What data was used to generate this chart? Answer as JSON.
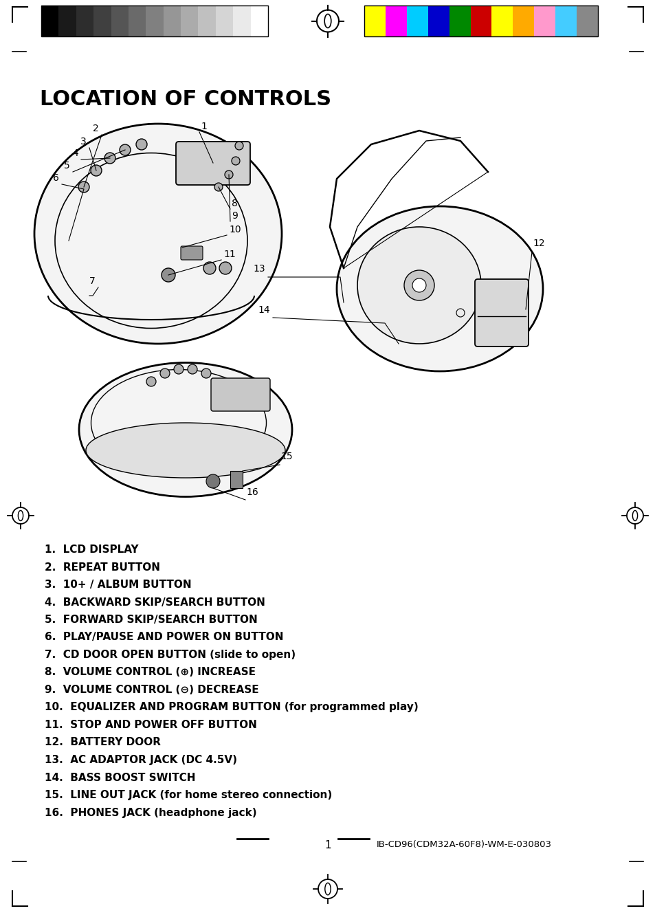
{
  "title": "LOCATION OF CONTROLS",
  "background_color": "#ffffff",
  "text_color": "#000000",
  "items": [
    "1.  LCD DISPLAY",
    "2.  REPEAT BUTTON",
    "3.  10+ / ALBUM BUTTON",
    "4.  BACKWARD SKIP/SEARCH BUTTON",
    "5.  FORWARD SKIP/SEARCH BUTTON",
    "6.  PLAY/PAUSE AND POWER ON BUTTON",
    "7.  CD DOOR OPEN BUTTON (slide to open)",
    "8.  VOLUME CONTROL (⊕) INCREASE",
    "9.  VOLUME CONTROL (⊖) DECREASE",
    "10.  EQUALIZER AND PROGRAM BUTTON (for programmed play)",
    "11.  STOP AND POWER OFF BUTTON",
    "12.  BATTERY DOOR",
    "13.  AC ADAPTOR JACK (DC 4.5V)",
    "14.  BASS BOOST SWITCH",
    "15.  LINE OUT JACK (for home stereo connection)",
    "16.  PHONES JACK (headphone jack)"
  ],
  "footer_page": "1",
  "footer_code": "IB-CD96(CDM32A-60F8)-WM-E-030803",
  "grayscale_colors": [
    "#000000",
    "#1a1a1a",
    "#2d2d2d",
    "#404040",
    "#555555",
    "#6a6a6a",
    "#808080",
    "#969696",
    "#ababab",
    "#c0c0c0",
    "#d5d5d5",
    "#eaeaea",
    "#ffffff"
  ],
  "color_bars": [
    "#ffff00",
    "#ff00ff",
    "#00ccff",
    "#0000cc",
    "#008800",
    "#cc0000",
    "#ffff00",
    "#ffaa00",
    "#ff99cc",
    "#44ccff",
    "#888888"
  ]
}
